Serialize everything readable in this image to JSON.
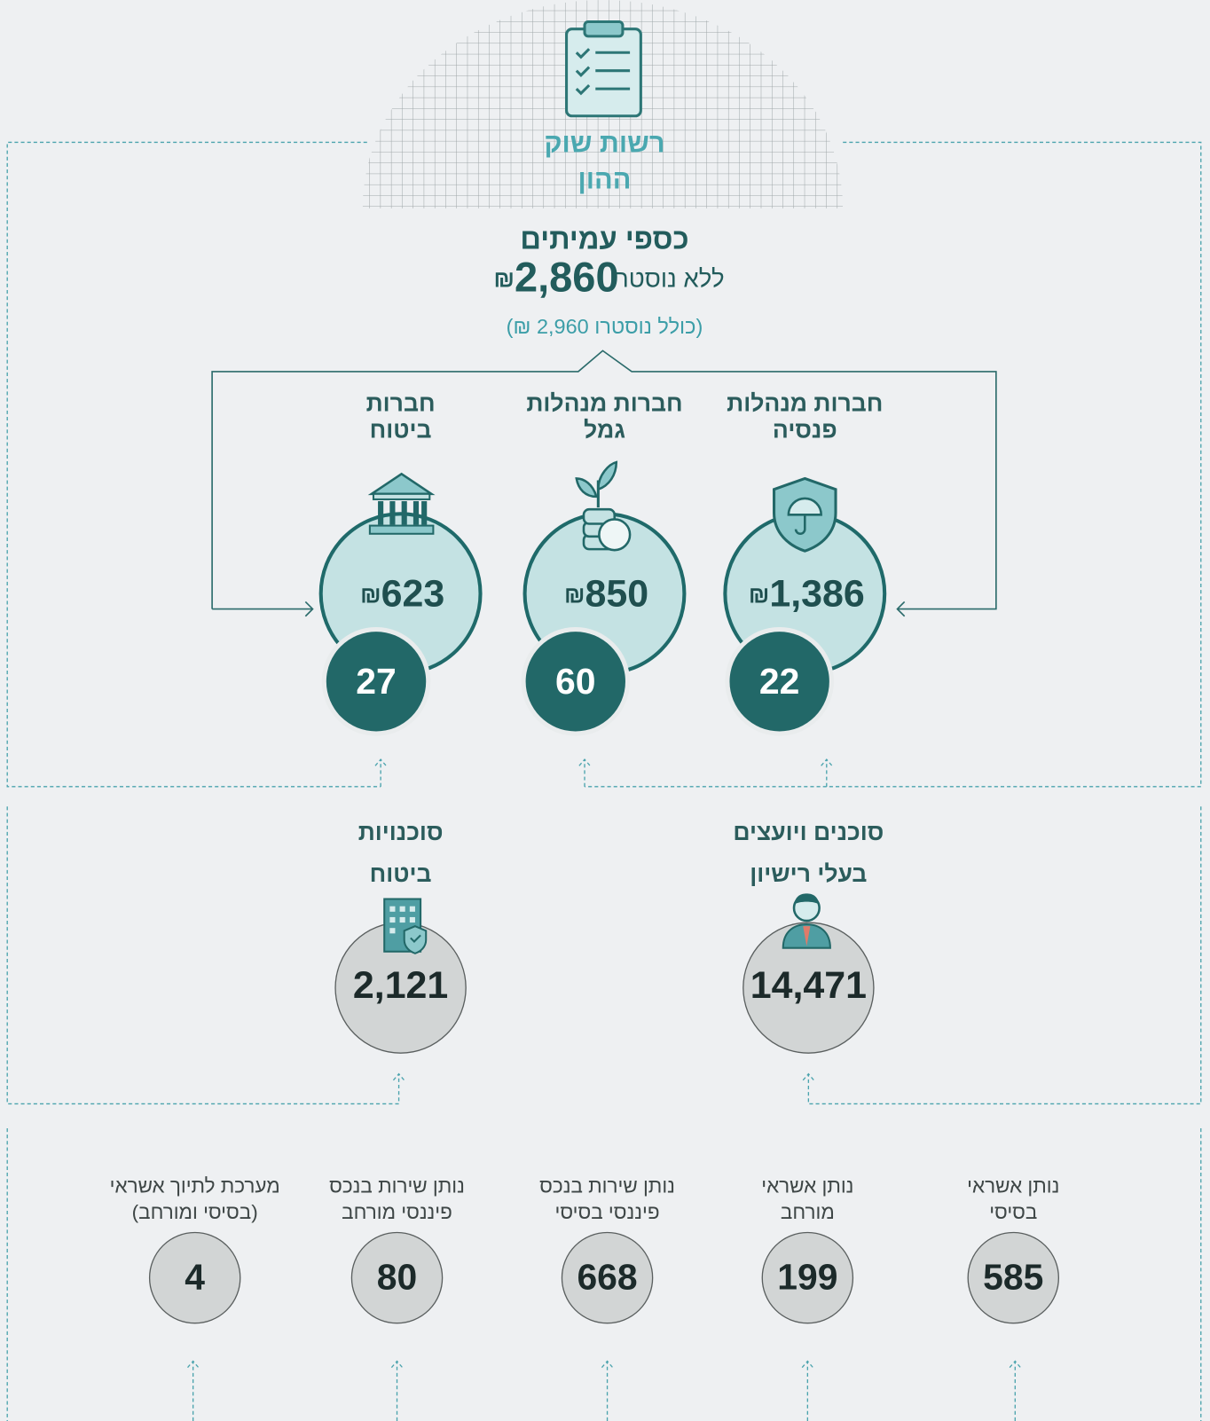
{
  "header": {
    "title_lines": [
      "רשות שוק",
      "ההון"
    ]
  },
  "funds": {
    "title": "כספי עמיתים",
    "amount": "2,860",
    "currency": "₪",
    "note": "ללא נוסטרו",
    "including_nostro": "(כולל נוסטרו 2,960 ₪)"
  },
  "companies": [
    {
      "label_lines": [
        "חברות מנהלות",
        "פנסיה"
      ],
      "amount": "1,386",
      "count": "22"
    },
    {
      "label_lines": [
        "חברות מנהלות",
        "גמל"
      ],
      "amount": "850",
      "count": "60"
    },
    {
      "label_lines": [
        "חברות",
        "ביטוח"
      ],
      "amount": "623",
      "count": "27"
    }
  ],
  "agents": [
    {
      "label_lines": [
        "סוכנים ויועצים",
        "בעלי רישיון"
      ],
      "count": "14,471"
    },
    {
      "label_lines": [
        "סוכנויות",
        "ביטוח"
      ],
      "count": "2,121"
    }
  ],
  "credit_providers": [
    {
      "label_lines": [
        "נותן אשראי",
        "בסיסי"
      ],
      "count": "585"
    },
    {
      "label_lines": [
        "נותן אשראי",
        "מורחב"
      ],
      "count": "199"
    },
    {
      "label_lines": [
        "נותן שירות בנכס",
        "פיננסי בסיסי"
      ],
      "count": "668"
    },
    {
      "label_lines": [
        "נותן שירות בנכס",
        "פיננסי מורחב"
      ],
      "count": "80"
    },
    {
      "label_lines": [
        "מערכת לתיוך אשראי",
        "(בסיסי ומורחב)"
      ],
      "count": "4"
    }
  ]
}
